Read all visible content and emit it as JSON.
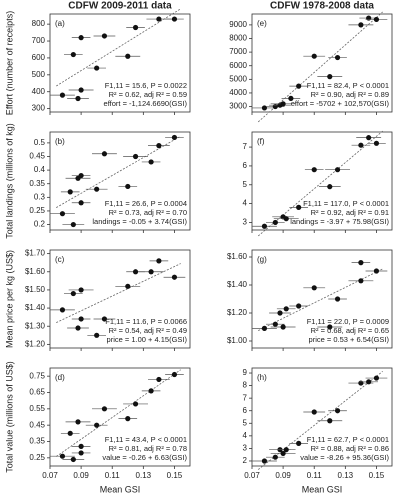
{
  "chart_data": [
    {
      "type": "scatter",
      "panel": "(a)",
      "title": "CDFW 2009-2011 data",
      "ylabel": "Effort (number of receipts)",
      "x": [
        0.078,
        0.085,
        0.088,
        0.09,
        0.09,
        0.1,
        0.105,
        0.12,
        0.125,
        0.14,
        0.15
      ],
      "xerr": [
        0.008,
        0.006,
        0.007,
        0.008,
        0.006,
        0.006,
        0.007,
        0.008,
        0.006,
        0.008,
        0.006
      ],
      "values": [
        380,
        620,
        360,
        410,
        720,
        540,
        730,
        610,
        780,
        830,
        830
      ],
      "xlim": [
        0.07,
        0.16
      ],
      "xticks": [
        0.07,
        0.09,
        0.11,
        0.13,
        0.15
      ],
      "ylim": [
        280,
        860
      ],
      "yticks": [
        300,
        400,
        500,
        600,
        700,
        800
      ],
      "stats": [
        "F1,11 = 15.6, P = 0.0022",
        "R² = 0.62, adj R² = 0.59",
        "effort = -1,124.6690(GSI)"
      ]
    },
    {
      "type": "scatter",
      "panel": "(b)",
      "ylabel": "Total landings (millions of kg)",
      "x": [
        0.078,
        0.083,
        0.085,
        0.088,
        0.09,
        0.09,
        0.1,
        0.105,
        0.12,
        0.125,
        0.135,
        0.14,
        0.15
      ],
      "xerr": [
        0.008,
        0.006,
        0.007,
        0.008,
        0.006,
        0.006,
        0.007,
        0.008,
        0.006,
        0.008,
        0.006,
        0.007,
        0.006
      ],
      "values": [
        0.24,
        0.32,
        0.2,
        0.37,
        0.28,
        0.38,
        0.33,
        0.46,
        0.34,
        0.45,
        0.43,
        0.49,
        0.52
      ],
      "xlim": [
        0.07,
        0.16
      ],
      "xticks": [
        0.07,
        0.09,
        0.11,
        0.13,
        0.15
      ],
      "ylim": [
        0.18,
        0.54
      ],
      "yticks": [
        0.2,
        0.25,
        0.3,
        0.35,
        0.4,
        0.45,
        0.5
      ],
      "stats": [
        "F1,11 = 26.6, P = 0.0004",
        "R² = 0.73, adj R² = 0.70",
        "landings = -0.05 + 3.74(GSI)"
      ]
    },
    {
      "type": "scatter",
      "panel": "(c)",
      "ylabel": "Mean price per kg (US$)",
      "x": [
        0.078,
        0.085,
        0.088,
        0.09,
        0.09,
        0.1,
        0.105,
        0.12,
        0.125,
        0.135,
        0.14,
        0.15
      ],
      "xerr": [
        0.008,
        0.006,
        0.007,
        0.008,
        0.006,
        0.006,
        0.007,
        0.008,
        0.006,
        0.008,
        0.006,
        0.007
      ],
      "values": [
        1.39,
        1.48,
        1.29,
        1.5,
        1.34,
        1.25,
        1.34,
        1.52,
        1.6,
        1.6,
        1.66,
        1.57
      ],
      "xlim": [
        0.07,
        0.16
      ],
      "xticks": [
        0.07,
        0.09,
        0.11,
        0.13,
        0.15
      ],
      "ylim": [
        1.18,
        1.72
      ],
      "yticks": [
        {
          "value": 1.2,
          "label": "$1.20"
        },
        {
          "value": 1.3,
          "label": "$1.30"
        },
        {
          "value": 1.4,
          "label": "$1.40"
        },
        {
          "value": 1.5,
          "label": "$1.50"
        },
        {
          "value": 1.6,
          "label": "$1.60"
        },
        {
          "value": 1.7,
          "label": "$1.70"
        }
      ],
      "stats": [
        "F1,11 = 11.6, P = 0.0066",
        "R² = 0.54, adj R² = 0.49",
        "price = 1.00 + 4.15(GSI)"
      ]
    },
    {
      "type": "scatter",
      "panel": "(d)",
      "ylabel": "Total value (millions of US$)",
      "xlabel": "Mean GSI",
      "x": [
        0.078,
        0.083,
        0.085,
        0.088,
        0.09,
        0.09,
        0.1,
        0.105,
        0.12,
        0.125,
        0.135,
        0.14,
        0.15
      ],
      "xerr": [
        0.008,
        0.006,
        0.007,
        0.008,
        0.006,
        0.006,
        0.007,
        0.008,
        0.006,
        0.008,
        0.006,
        0.007,
        0.006
      ],
      "values": [
        0.26,
        0.4,
        0.24,
        0.47,
        0.28,
        0.32,
        0.45,
        0.55,
        0.49,
        0.58,
        0.66,
        0.73,
        0.76
      ],
      "xlim": [
        0.07,
        0.16
      ],
      "xticks": [
        0.07,
        0.09,
        0.11,
        0.13,
        0.15
      ],
      "ylim": [
        0.2,
        0.8
      ],
      "yticks": [
        0.25,
        0.35,
        0.45,
        0.55,
        0.65,
        0.75
      ],
      "stats": [
        "F1,11 = 43.4, P < 0.0001",
        "R² = 0.81, adj R² = 0.78",
        "value = -0.26 + 6.63(GSI)"
      ]
    },
    {
      "type": "scatter",
      "panel": "(e)",
      "title": "CDFW 1978-2008 data",
      "x": [
        0.078,
        0.085,
        0.088,
        0.09,
        0.095,
        0.1,
        0.11,
        0.12,
        0.125,
        0.14,
        0.145,
        0.15
      ],
      "xerr": [
        0.008,
        0.006,
        0.007,
        0.008,
        0.006,
        0.006,
        0.007,
        0.008,
        0.006,
        0.008,
        0.006,
        0.007
      ],
      "values": [
        2900,
        3000,
        3100,
        3200,
        3600,
        4500,
        6700,
        5200,
        6600,
        9000,
        9500,
        9400
      ],
      "xlim": [
        0.07,
        0.16
      ],
      "xticks": [
        0.07,
        0.09,
        0.11,
        0.13,
        0.15
      ],
      "ylim": [
        2600,
        9800
      ],
      "yticks": [
        3000,
        4000,
        5000,
        6000,
        7000,
        8000,
        9000
      ],
      "stats": [
        "F1,11 = 82.4, P < 0.0001",
        "R² = 0.90, adj R² = 0.89",
        "effort = -5702 + 102,570(GSI)"
      ]
    },
    {
      "type": "scatter",
      "panel": "(f)",
      "x": [
        0.078,
        0.085,
        0.09,
        0.092,
        0.1,
        0.11,
        0.12,
        0.125,
        0.14,
        0.145,
        0.15
      ],
      "xerr": [
        0.008,
        0.006,
        0.007,
        0.008,
        0.006,
        0.006,
        0.007,
        0.008,
        0.006,
        0.008,
        0.006
      ],
      "values": [
        2.8,
        3.0,
        3.3,
        3.2,
        3.8,
        5.8,
        4.9,
        5.8,
        7.1,
        7.5,
        7.2
      ],
      "xlim": [
        0.07,
        0.16
      ],
      "xticks": [
        0.07,
        0.09,
        0.11,
        0.13,
        0.15
      ],
      "ylim": [
        2.6,
        7.8
      ],
      "yticks": [
        3,
        4,
        5,
        6,
        7
      ],
      "stats": [
        "F1,11 = 117.0, P < 0.0001",
        "R² = 0.92, adj R² = 0.91",
        "landings = -3.97 + 75.98(GSI)"
      ]
    },
    {
      "type": "scatter",
      "panel": "(g)",
      "x": [
        0.078,
        0.085,
        0.088,
        0.09,
        0.092,
        0.1,
        0.11,
        0.12,
        0.125,
        0.14,
        0.14,
        0.15
      ],
      "xerr": [
        0.008,
        0.006,
        0.007,
        0.008,
        0.006,
        0.006,
        0.007,
        0.008,
        0.006,
        0.008,
        0.006,
        0.007
      ],
      "values": [
        1.09,
        1.12,
        1.2,
        1.1,
        1.23,
        1.25,
        1.38,
        1.1,
        1.3,
        1.43,
        1.56,
        1.5
      ],
      "xlim": [
        0.07,
        0.16
      ],
      "xticks": [
        0.07,
        0.09,
        0.11,
        0.13,
        0.15
      ],
      "ylim": [
        0.95,
        1.65
      ],
      "yticks": [
        {
          "value": 1.0,
          "label": "$1.00"
        },
        {
          "value": 1.2,
          "label": "$1.20"
        },
        {
          "value": 1.4,
          "label": "$1.40"
        },
        {
          "value": 1.6,
          "label": "$1.60"
        }
      ],
      "stats": [
        "F1,11 = 22.0, P = 0.0009",
        "R² = 0.68, adj R² = 0.65",
        "price = 0.53 + 6.54(GSI)"
      ]
    },
    {
      "type": "scatter",
      "panel": "(h)",
      "xlabel": "Mean GSI",
      "x": [
        0.078,
        0.085,
        0.088,
        0.09,
        0.092,
        0.1,
        0.11,
        0.12,
        0.125,
        0.14,
        0.145,
        0.15
      ],
      "xerr": [
        0.008,
        0.006,
        0.007,
        0.008,
        0.006,
        0.006,
        0.007,
        0.008,
        0.006,
        0.008,
        0.006,
        0.007
      ],
      "values": [
        2.0,
        2.3,
        2.9,
        2.6,
        2.9,
        3.4,
        5.9,
        5.2,
        6.0,
        8.2,
        8.3,
        8.6
      ],
      "xlim": [
        0.07,
        0.16
      ],
      "xticks": [
        0.07,
        0.09,
        0.11,
        0.13,
        0.15
      ],
      "ylim": [
        1.6,
        9.4
      ],
      "yticks": [
        2,
        3,
        4,
        5,
        6,
        7,
        8,
        9
      ],
      "stats": [
        "F1,11 = 62.7, P < 0.0001",
        "R² = 0.88, adj R² = 0.86",
        "value = -8.26 + 95.36(GSI)"
      ]
    }
  ]
}
